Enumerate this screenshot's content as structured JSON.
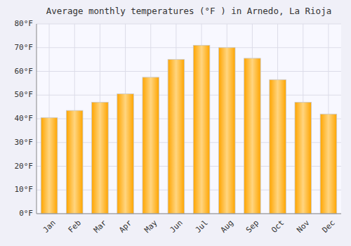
{
  "chart_data": {
    "type": "bar",
    "title": "Average monthly temperatures (°F ) in Arnedo, La Rioja",
    "categories": [
      "Jan",
      "Feb",
      "Mar",
      "Apr",
      "May",
      "Jun",
      "Jul",
      "Aug",
      "Sep",
      "Oct",
      "Nov",
      "Dec"
    ],
    "values": [
      40.5,
      43.5,
      47.0,
      50.5,
      57.5,
      65.0,
      71.0,
      70.0,
      65.5,
      56.5,
      47.0,
      42.0
    ],
    "color": "#FFA500",
    "ylim": [
      0,
      80
    ],
    "yticks": [
      {
        "value": 0,
        "label": "0°F"
      },
      {
        "value": 10,
        "label": "10°F"
      },
      {
        "value": 20,
        "label": "20°F"
      },
      {
        "value": 30,
        "label": "30°F"
      },
      {
        "value": 40,
        "label": "40°F"
      },
      {
        "value": 50,
        "label": "50°F"
      },
      {
        "value": 60,
        "label": "60°F"
      },
      {
        "value": 70,
        "label": "70°F"
      },
      {
        "value": 80,
        "label": "80°F"
      }
    ],
    "grid": true
  }
}
